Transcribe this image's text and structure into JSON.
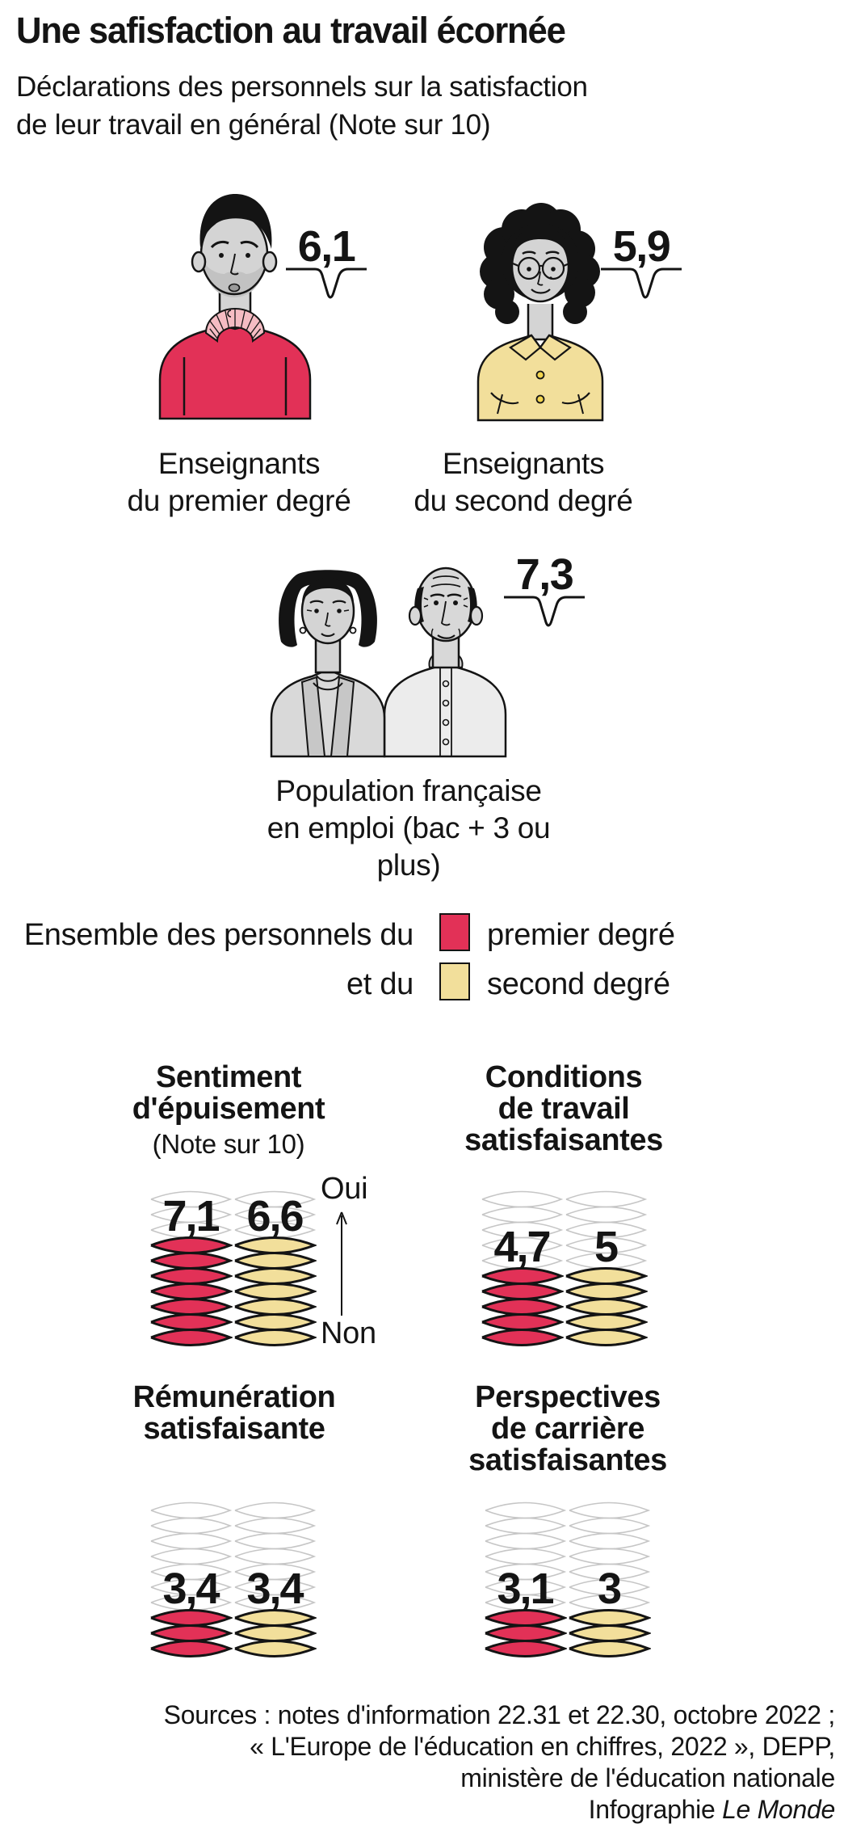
{
  "title": "Une safisfaction au travail écornée",
  "subtitle_lines": [
    "Déclarations des personnels sur la satisfaction",
    "de leur travail en général (Note sur 10)"
  ],
  "colors": {
    "first_degree": "#e23157",
    "second_degree": "#f2df9b",
    "collar_pink": "#f5bcc3",
    "empty_outline": "#c6c6c6",
    "ink": "#141414",
    "skin": "#d4d4d4",
    "clothes_gray": "#d9d9d9",
    "shirt_light": "#ececec"
  },
  "figures": [
    {
      "score": "6,1",
      "label_lines": [
        "Enseignants",
        "du premier degré"
      ]
    },
    {
      "score": "5,9",
      "label_lines": [
        "Enseignants",
        "du second degré"
      ]
    },
    {
      "score": "7,3",
      "label_lines": [
        "Population française",
        "en emploi (bac + 3 ou plus)"
      ]
    }
  ],
  "legend": {
    "line1_text": "Ensemble des personnels du",
    "line1_label": "premier degré",
    "line2_text": "et du",
    "line2_label": "second degré"
  },
  "charts": [
    {
      "title_lines": [
        "Sentiment",
        "d'épuisement"
      ],
      "note": "(Note sur 10)",
      "values": [
        "7,1",
        "6,6"
      ],
      "filled": [
        7,
        7
      ]
    },
    {
      "title_lines": [
        "Conditions",
        "de travail",
        "satisfaisantes"
      ],
      "values": [
        "4,7",
        "5"
      ],
      "filled": [
        5,
        5
      ]
    },
    {
      "title_lines": [
        "Rémunération",
        "satisfaisante"
      ],
      "values": [
        "3,4",
        "3,4"
      ],
      "filled": [
        3,
        3
      ]
    },
    {
      "title_lines": [
        "Perspectives",
        "de carrière",
        "satisfaisantes"
      ],
      "values": [
        "3,1",
        "3"
      ],
      "filled": [
        3,
        3
      ]
    }
  ],
  "axis": {
    "top": "Oui",
    "bottom": "Non"
  },
  "sources_lines": [
    "Sources : notes d'information 22.31 et 22.30, octobre 2022 ;",
    "« L'Europe de l'éducation en chiffres, 2022 », DEPP,",
    "ministère de l'éducation nationale"
  ],
  "credit_prefix": "Infographie ",
  "credit_name": "Le Monde",
  "chart_data": [
    {
      "type": "bar",
      "title": "Déclarations des personnels sur la satisfaction de leur travail en général (Note sur 10)",
      "categories": [
        "Enseignants du premier degré",
        "Enseignants du second degré",
        "Population française en emploi (bac + 3 ou plus)"
      ],
      "values": [
        6.1,
        5.9,
        7.3
      ],
      "ylim": [
        0,
        10
      ]
    },
    {
      "type": "bar",
      "title": "Sentiment d'épuisement (Note sur 10)",
      "categories": [
        "premier degré",
        "second degré"
      ],
      "values": [
        7.1,
        6.6
      ],
      "ylim": [
        0,
        10
      ],
      "scale_labels": [
        "Non",
        "Oui"
      ]
    },
    {
      "type": "bar",
      "title": "Conditions de travail satisfaisantes (Note sur 10)",
      "categories": [
        "premier degré",
        "second degré"
      ],
      "values": [
        4.7,
        5
      ],
      "ylim": [
        0,
        10
      ]
    },
    {
      "type": "bar",
      "title": "Rémunération satisfaisante (Note sur 10)",
      "categories": [
        "premier degré",
        "second degré"
      ],
      "values": [
        3.4,
        3.4
      ],
      "ylim": [
        0,
        10
      ]
    },
    {
      "type": "bar",
      "title": "Perspectives de carrière satisfaisantes (Note sur 10)",
      "categories": [
        "premier degré",
        "second degré"
      ],
      "values": [
        3.1,
        3
      ],
      "ylim": [
        0,
        10
      ]
    }
  ]
}
